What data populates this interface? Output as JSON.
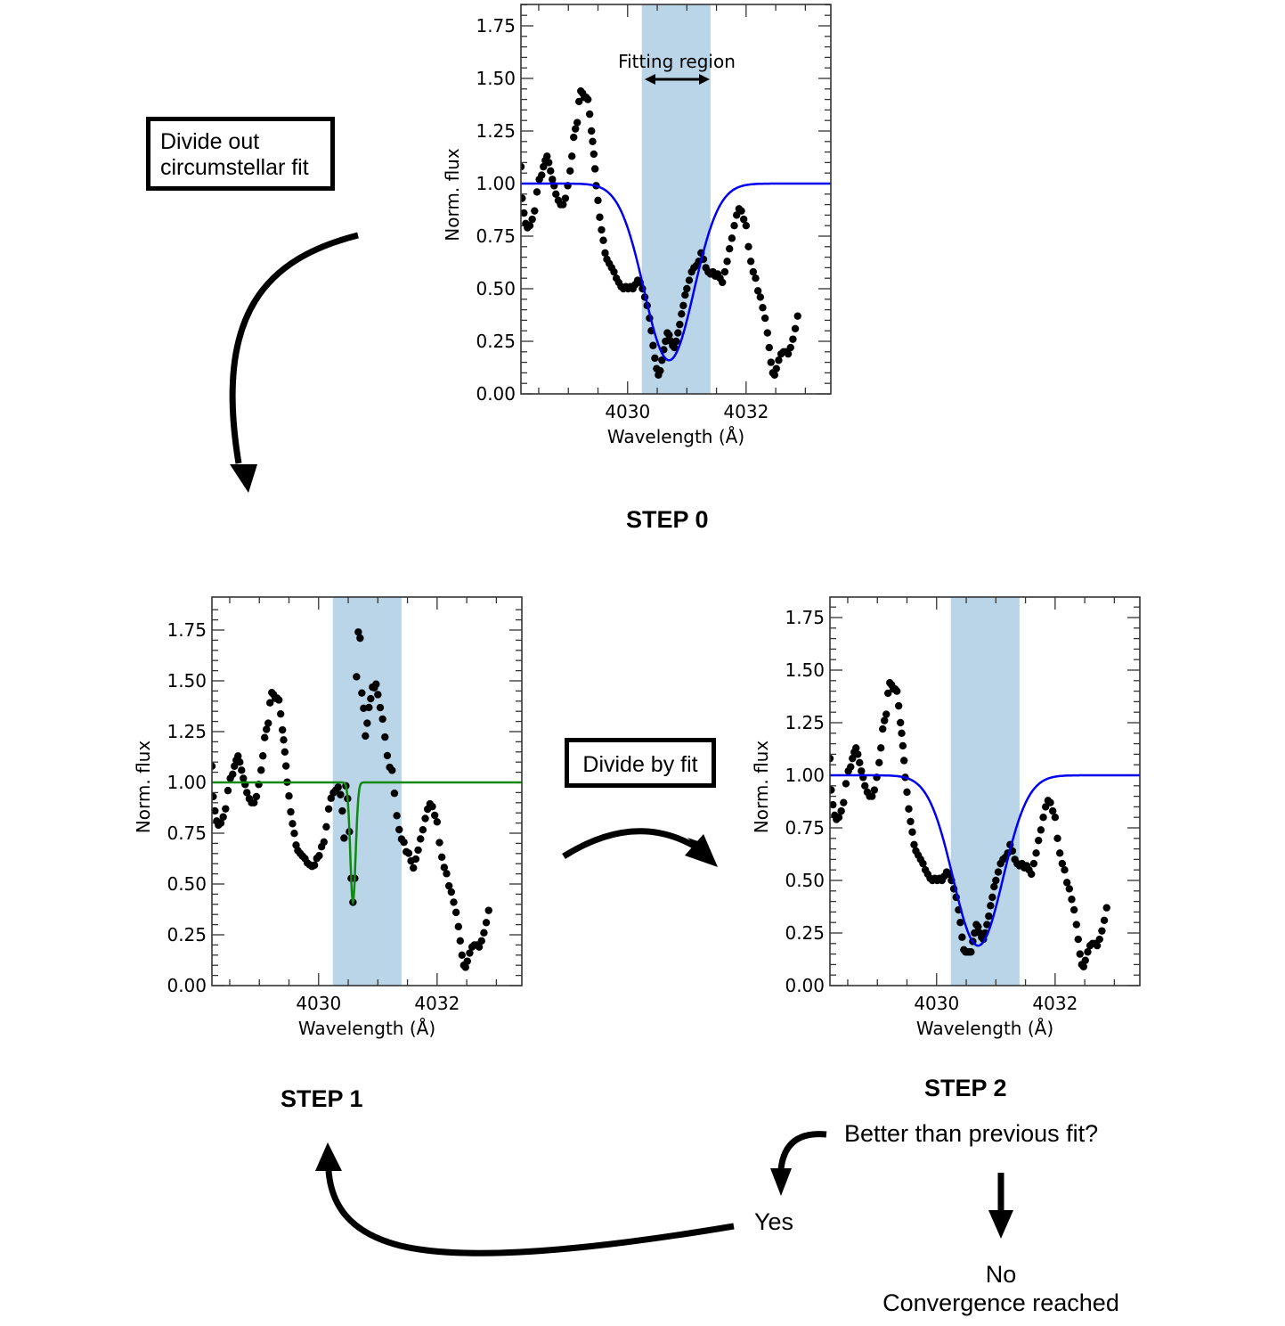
{
  "diagram": {
    "steps": {
      "step0": "STEP 0",
      "step1": "STEP 1",
      "step2": "STEP 2"
    },
    "boxes": {
      "divide_out": [
        "Divide out",
        "circumstellar fit"
      ],
      "divide_by_fit": "Divide by fit"
    },
    "decision": {
      "question": "Better than previous fit?",
      "yes": "Yes",
      "no": "No",
      "no_result": "Convergence reached"
    },
    "annotation": "Fitting region"
  },
  "colors": {
    "points": "#000000",
    "fit_blue": "#0000ee",
    "fit_green": "#118811",
    "region": "#bad5e8"
  },
  "chart_data": [
    {
      "id": "step0",
      "type": "scatter",
      "title": "STEP 0",
      "xlabel": "Wavelength (Å)",
      "ylabel": "Norm. flux",
      "xlim": [
        4028.2,
        4033.43
      ],
      "ylim": [
        0,
        1.85
      ],
      "xticks": [
        4030,
        4032
      ],
      "yticks": [
        0.0,
        0.25,
        0.5,
        0.75,
        1.0,
        1.25,
        1.5,
        1.75
      ],
      "fitting_region": [
        4030.24,
        4031.4
      ],
      "annotation": "Fitting region",
      "fit": {
        "type": "gaussian",
        "color": "blue",
        "continuum": 1.0,
        "center": 4030.7,
        "depth": 0.84,
        "sigma": 0.42
      },
      "points": "base_spectrum"
    },
    {
      "id": "step1",
      "type": "scatter",
      "title": "STEP 1",
      "xlabel": "Wavelength (Å)",
      "ylabel": "Norm. flux",
      "xlim": [
        4028.2,
        4033.43
      ],
      "ylim": [
        0,
        1.91
      ],
      "xticks": [
        4030,
        4032
      ],
      "yticks": [
        0.0,
        0.25,
        0.5,
        0.75,
        1.0,
        1.25,
        1.5,
        1.75
      ],
      "fitting_region": [
        4030.24,
        4031.4
      ],
      "fit": {
        "type": "gaussian",
        "color": "green",
        "continuum": 1.0,
        "center": 4030.58,
        "depth": 0.59,
        "sigma": 0.045
      },
      "points": "divided_spectrum"
    },
    {
      "id": "step2",
      "type": "scatter",
      "title": "STEP 2",
      "xlabel": "Wavelength (Å)",
      "ylabel": "Norm. flux",
      "xlim": [
        4028.2,
        4033.43
      ],
      "ylim": [
        0,
        1.85
      ],
      "xticks": [
        4030,
        4032
      ],
      "yticks": [
        0.0,
        0.25,
        0.5,
        0.75,
        1.0,
        1.25,
        1.5,
        1.75
      ],
      "fitting_region": [
        4030.24,
        4031.4
      ],
      "fit": {
        "type": "gaussian",
        "color": "blue",
        "continuum": 1.0,
        "center": 4030.7,
        "depth": 0.81,
        "sigma": 0.42
      },
      "points": "base_spectrum_step2"
    }
  ],
  "spectra": {
    "base_spectrum": [
      [
        4028.2,
        1.08
      ],
      [
        4028.22,
        0.93
      ],
      [
        4028.25,
        0.86
      ],
      [
        4028.28,
        0.81
      ],
      [
        4028.31,
        0.79
      ],
      [
        4028.35,
        0.8
      ],
      [
        4028.39,
        0.83
      ],
      [
        4028.43,
        0.87
      ],
      [
        4028.47,
        0.96
      ],
      [
        4028.51,
        1.02
      ],
      [
        4028.55,
        1.04
      ],
      [
        4028.58,
        1.08
      ],
      [
        4028.61,
        1.11
      ],
      [
        4028.64,
        1.13
      ],
      [
        4028.67,
        1.1
      ],
      [
        4028.7,
        1.06
      ],
      [
        4028.73,
        1.02
      ],
      [
        4028.76,
        0.99
      ],
      [
        4028.79,
        0.95
      ],
      [
        4028.83,
        0.92
      ],
      [
        4028.87,
        0.9
      ],
      [
        4028.91,
        0.9
      ],
      [
        4028.95,
        0.93
      ],
      [
        4028.99,
        0.99
      ],
      [
        4029.03,
        1.06
      ],
      [
        4029.06,
        1.13
      ],
      [
        4029.09,
        1.22
      ],
      [
        4029.12,
        1.26
      ],
      [
        4029.15,
        1.29
      ],
      [
        4029.18,
        1.39
      ],
      [
        4029.21,
        1.44
      ],
      [
        4029.24,
        1.43
      ],
      [
        4029.27,
        1.41
      ],
      [
        4029.3,
        1.41
      ],
      [
        4029.33,
        1.4
      ],
      [
        4029.36,
        1.33
      ],
      [
        4029.39,
        1.25
      ],
      [
        4029.41,
        1.2
      ],
      [
        4029.43,
        1.14
      ],
      [
        4029.45,
        1.07
      ],
      [
        4029.47,
        0.99
      ],
      [
        4029.5,
        0.92
      ],
      [
        4029.53,
        0.84
      ],
      [
        4029.56,
        0.78
      ],
      [
        4029.59,
        0.73
      ],
      [
        4029.62,
        0.67
      ],
      [
        4029.65,
        0.64
      ],
      [
        4029.69,
        0.62
      ],
      [
        4029.73,
        0.6
      ],
      [
        4029.77,
        0.58
      ],
      [
        4029.81,
        0.55
      ],
      [
        4029.85,
        0.53
      ],
      [
        4029.89,
        0.51
      ],
      [
        4029.93,
        0.5
      ],
      [
        4029.97,
        0.51
      ],
      [
        4030.01,
        0.5
      ],
      [
        4030.05,
        0.51
      ],
      [
        4030.09,
        0.5
      ],
      [
        4030.13,
        0.52
      ],
      [
        4030.17,
        0.54
      ],
      [
        4030.21,
        0.53
      ],
      [
        4030.25,
        0.5
      ],
      [
        4030.29,
        0.46
      ],
      [
        4030.33,
        0.42
      ],
      [
        4030.37,
        0.36
      ],
      [
        4030.4,
        0.3
      ],
      [
        4030.43,
        0.23
      ],
      [
        4030.46,
        0.17
      ],
      [
        4030.49,
        0.12
      ],
      [
        4030.52,
        0.09
      ],
      [
        4030.55,
        0.11
      ],
      [
        4030.58,
        0.16
      ],
      [
        4030.61,
        0.21
      ],
      [
        4030.64,
        0.25
      ],
      [
        4030.67,
        0.29
      ],
      [
        4030.7,
        0.28
      ],
      [
        4030.73,
        0.25
      ],
      [
        4030.76,
        0.23
      ],
      [
        4030.79,
        0.22
      ],
      [
        4030.82,
        0.25
      ],
      [
        4030.85,
        0.29
      ],
      [
        4030.88,
        0.33
      ],
      [
        4030.91,
        0.38
      ],
      [
        4030.94,
        0.42
      ],
      [
        4030.97,
        0.47
      ],
      [
        4031.0,
        0.5
      ],
      [
        4031.04,
        0.54
      ],
      [
        4031.08,
        0.58
      ],
      [
        4031.12,
        0.6
      ],
      [
        4031.16,
        0.61
      ],
      [
        4031.2,
        0.63
      ],
      [
        4031.24,
        0.67
      ],
      [
        4031.28,
        0.64
      ],
      [
        4031.32,
        0.6
      ],
      [
        4031.36,
        0.58
      ],
      [
        4031.4,
        0.57
      ],
      [
        4031.44,
        0.58
      ],
      [
        4031.48,
        0.56
      ],
      [
        4031.52,
        0.57
      ],
      [
        4031.56,
        0.55
      ],
      [
        4031.6,
        0.53
      ],
      [
        4031.64,
        0.58
      ],
      [
        4031.68,
        0.63
      ],
      [
        4031.72,
        0.69
      ],
      [
        4031.76,
        0.74
      ],
      [
        4031.8,
        0.8
      ],
      [
        4031.84,
        0.85
      ],
      [
        4031.88,
        0.88
      ],
      [
        4031.92,
        0.87
      ],
      [
        4031.96,
        0.83
      ],
      [
        4032.0,
        0.8
      ],
      [
        4032.04,
        0.7
      ],
      [
        4032.08,
        0.63
      ],
      [
        4032.12,
        0.58
      ],
      [
        4032.16,
        0.55
      ],
      [
        4032.2,
        0.49
      ],
      [
        4032.24,
        0.46
      ],
      [
        4032.28,
        0.41
      ],
      [
        4032.32,
        0.36
      ],
      [
        4032.36,
        0.29
      ],
      [
        4032.39,
        0.22
      ],
      [
        4032.42,
        0.15
      ],
      [
        4032.45,
        0.1
      ],
      [
        4032.48,
        0.09
      ],
      [
        4032.51,
        0.12
      ],
      [
        4032.55,
        0.16
      ],
      [
        4032.59,
        0.19
      ],
      [
        4032.63,
        0.2
      ],
      [
        4032.67,
        0.2
      ],
      [
        4032.71,
        0.19
      ],
      [
        4032.75,
        0.22
      ],
      [
        4032.79,
        0.26
      ],
      [
        4032.83,
        0.31
      ],
      [
        4032.87,
        0.37
      ]
    ]
  }
}
